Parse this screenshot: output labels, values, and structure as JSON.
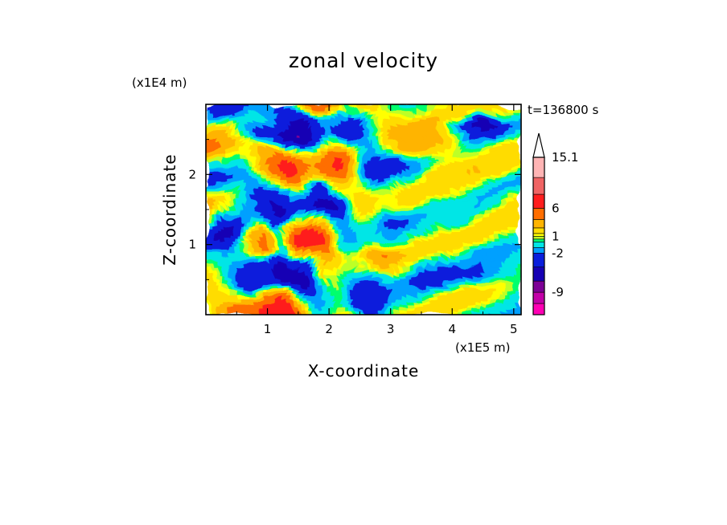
{
  "chart_data": {
    "type": "heatmap",
    "title": "zonal velocity",
    "time_label": "t=136800 s",
    "xlabel": "X-coordinate",
    "ylabel": "Z-coordinate",
    "x_unit": "(x1E5 m)",
    "y_unit": "(x1E4 m)",
    "xlim": [
      0,
      5.12
    ],
    "ylim": [
      0,
      3.0
    ],
    "x_ticks": [
      "1",
      "2",
      "3",
      "4",
      "5"
    ],
    "x_tick_values": [
      1,
      2,
      3,
      4,
      5
    ],
    "y_ticks": [
      "1",
      "2"
    ],
    "y_tick_values": [
      1,
      2
    ],
    "colorbar": {
      "labels": [
        "15.1",
        "6",
        "1",
        "-2",
        "-9"
      ],
      "label_values": [
        15.1,
        6,
        1,
        -2,
        -9
      ],
      "vmin": -13,
      "vmax": 15.1,
      "colors": [
        "#ff00b4",
        "#c300a8",
        "#7d0096",
        "#1600b4",
        "#0a1edc",
        "#00a0ff",
        "#00e6e6",
        "#00ff6e",
        "#beff28",
        "#ffff00",
        "#ffdc00",
        "#ffb400",
        "#ff6e00",
        "#ff1e1e",
        "#f06464",
        "#ffb4b4"
      ]
    }
  }
}
